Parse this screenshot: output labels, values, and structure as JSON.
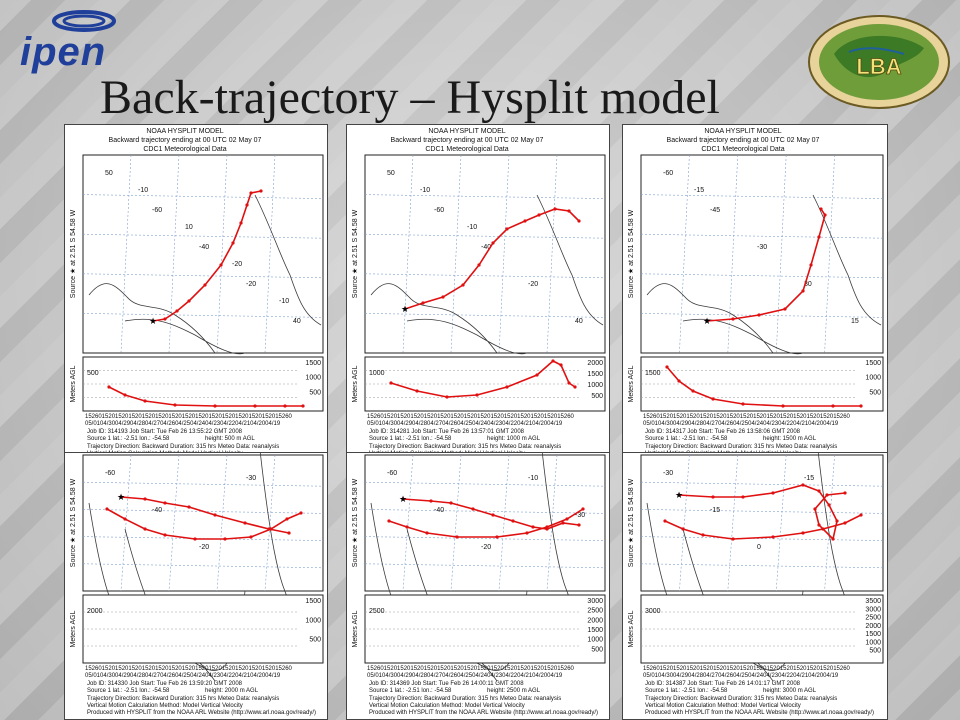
{
  "title": "Back-trajectory – Hysplit model",
  "logos": {
    "ipen": "ipen",
    "lba": "LBA",
    "lba_icon": "globe-map-icon"
  },
  "common": {
    "model": "NOAA HYSPLIT MODEL",
    "backward": "Backward trajectory ending at 00 UTC 02 May 07",
    "met": "CDC1 Meteorological Data",
    "source_label": "Source ★ at  2.51 S  54.58 W",
    "meters_agl": "Meters AGL",
    "time_labels": "15260152015201520152015201520152015201520152015201520152015260",
    "date_labels": "05/0104/3004/2904/2804/2704/2604/2504/2404/2304/2204/2104/2004/19",
    "source_line": "Source 1     lat.: -2.51    lon.: -54.58",
    "traj_direction": "Trajectory Direction: Backward   Duration: 315 hrs   Meteo Data: reanalysis",
    "vert_motion": "Vertical Motion Calculation Method: Model Vertical Velocity",
    "produced": "Produced with HYSPLIT from the NOAA ARL Website (http://www.arl.noaa.gov/ready/)"
  },
  "panels": [
    {
      "job": "Job ID: 314193      Job Start: Tue Feb 26 13:55:22 GMT 2008",
      "height": "height: 500 m AGL",
      "start_agl": "500",
      "right_ticks": [
        "1500",
        "1000",
        "500"
      ],
      "map_labels": [
        "50",
        "-60",
        "-40",
        "-20",
        "40",
        "-10",
        "10",
        "-20",
        "-10"
      ]
    },
    {
      "job": "Job ID: 314281      Job Start: Tue Feb 26 13:57:01 GMT 2008",
      "height": "height: 1000 m AGL",
      "start_agl": "1000",
      "right_ticks": [
        "2000",
        "1500",
        "1000",
        "500"
      ],
      "map_labels": [
        "50",
        "-60",
        "-40",
        "-20",
        "40",
        "-10",
        "-10"
      ]
    },
    {
      "job": "Job ID: 314317      Job Start: Tue Feb 26 13:58:06 GMT 2008",
      "height": "height: 1500 m AGL",
      "start_agl": "1500",
      "right_ticks": [
        "1500",
        "1000",
        "500"
      ],
      "map_labels": [
        "-60",
        "-45",
        "-30",
        "30",
        "15",
        "-15"
      ]
    },
    {
      "job": "Job ID: 314330      Job Start: Tue Feb 26 13:59:20 GMT 2008",
      "height": "height: 2000 m AGL",
      "start_agl": "2000",
      "right_ticks": [
        "1500",
        "1000",
        "500"
      ],
      "map_labels": [
        "-60",
        "-40",
        "-20",
        "-30"
      ]
    },
    {
      "job": "Job ID: 314369      Job Start: Tue Feb 26 14:00:11 GMT 2008",
      "height": "height: 2500 m AGL",
      "start_agl": "2500",
      "right_ticks": [
        "3000",
        "2500",
        "2000",
        "1500",
        "1000",
        "500"
      ],
      "map_labels": [
        "-60",
        "-40",
        "-20",
        "-10",
        "-30"
      ]
    },
    {
      "job": "Job ID: 314387      Job Start: Tue Feb 26 14:01:17 GMT 2008",
      "height": "height: 3000 m AGL",
      "start_agl": "3000",
      "right_ticks": [
        "3500",
        "3000",
        "2500",
        "2000",
        "1500",
        "1000",
        "500"
      ],
      "map_labels": [
        "-30",
        "-15",
        "0",
        "-15"
      ]
    }
  ],
  "colors": {
    "trajectory": "#e01010",
    "map_lines": "#3a3a3a",
    "grid": "#7f9fcf"
  }
}
